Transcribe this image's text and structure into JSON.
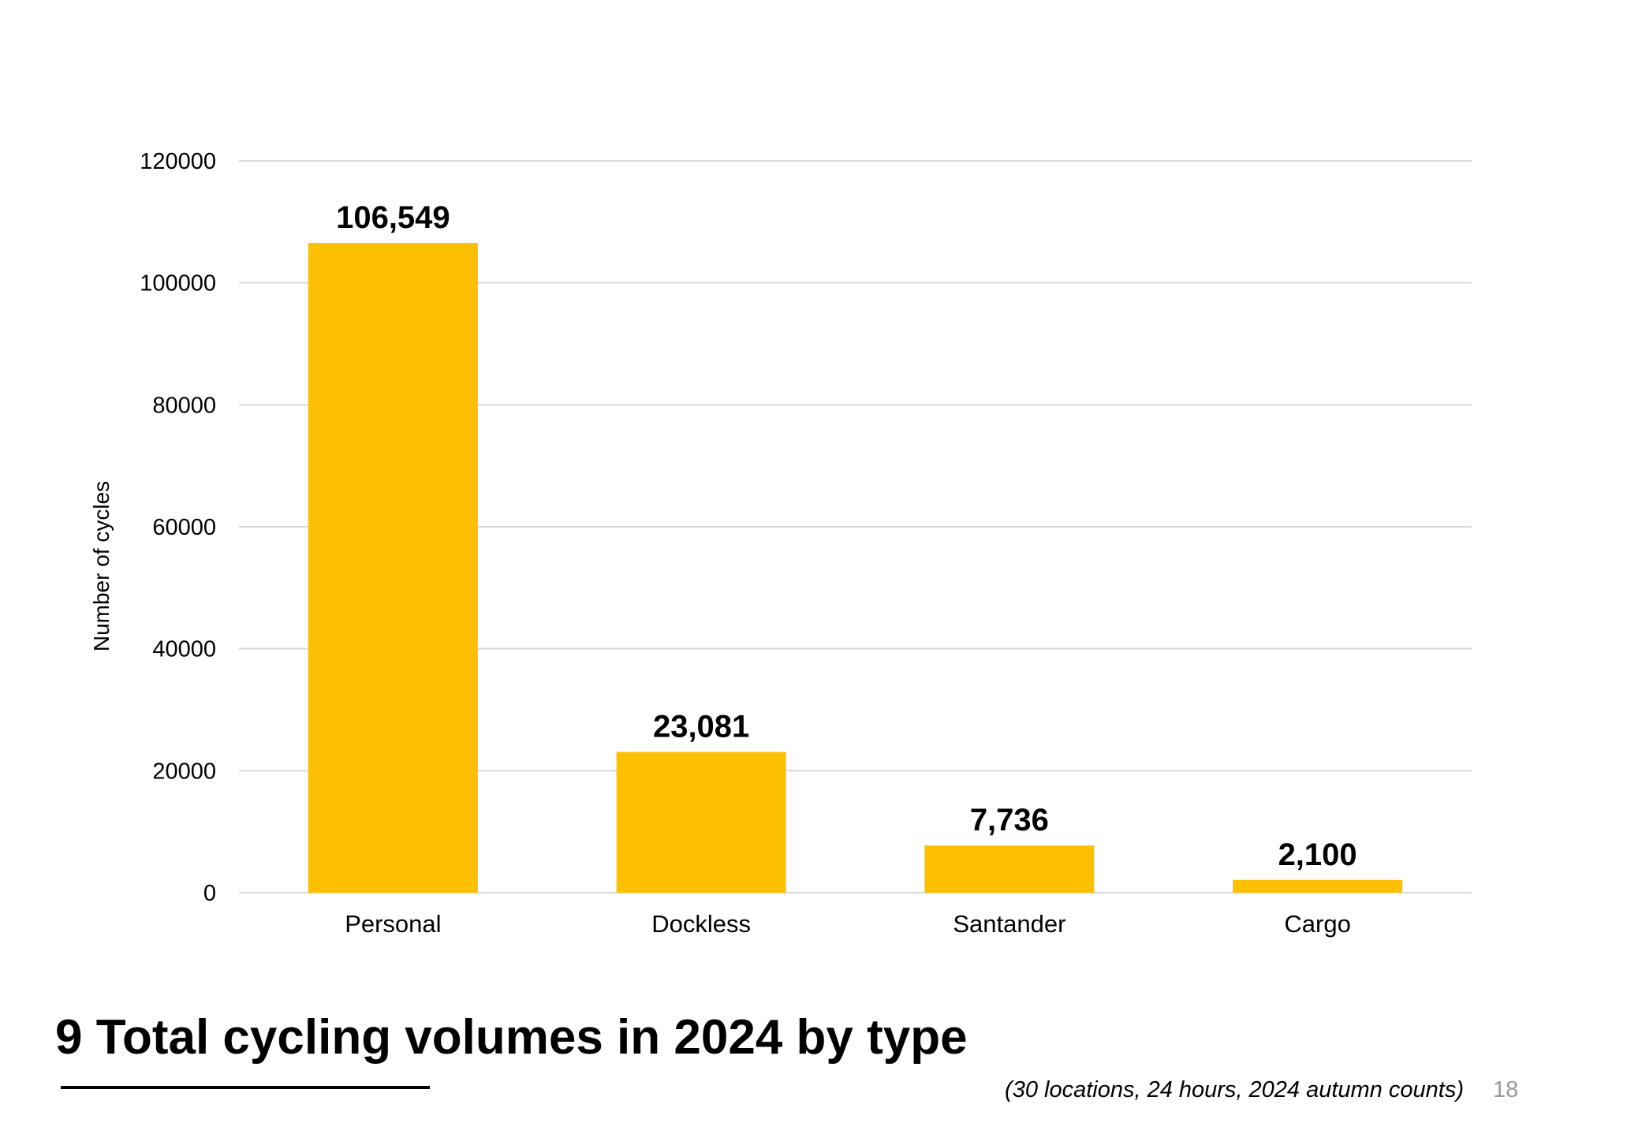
{
  "chart_data": {
    "type": "bar",
    "categories": [
      "Personal",
      "Dockless",
      "Santander",
      "Cargo"
    ],
    "values": [
      106549,
      23081,
      7736,
      2100
    ],
    "data_labels": [
      "106,549",
      "23,081",
      "7,736",
      "2,100"
    ],
    "title": "9 Total cycling volumes in 2024 by type",
    "subtitle": "(30 locations, 24 hours, 2024 autumn counts)",
    "xlabel": "",
    "ylabel": "Number of cycles",
    "ylim": [
      0,
      120000
    ],
    "yticks": [
      0,
      20000,
      40000,
      60000,
      80000,
      100000,
      120000
    ],
    "grid": true,
    "bar_color": "#FDC000",
    "grid_color": "#D9D9D9"
  },
  "page_number": "18"
}
